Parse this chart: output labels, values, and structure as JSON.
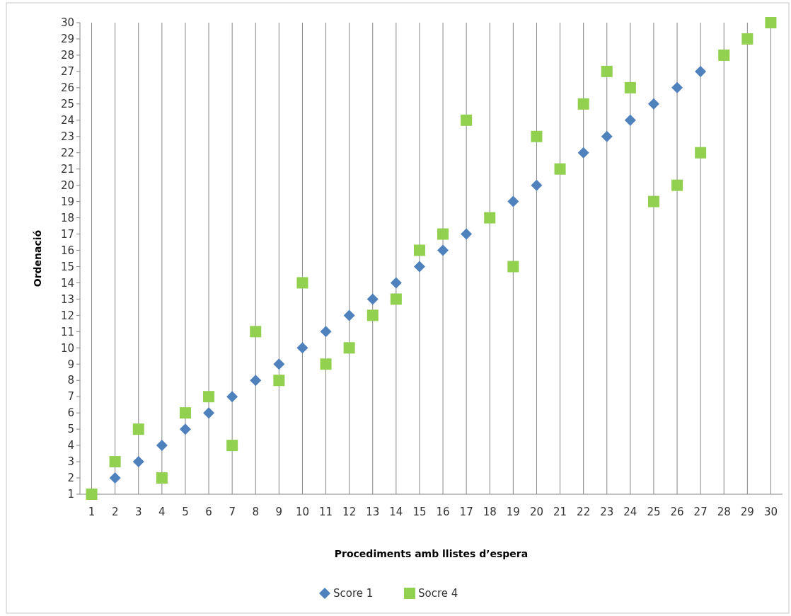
{
  "chart_data": {
    "type": "scatter",
    "xlabel": "Procediments amb llistes d’espera",
    "ylabel": "Ordenació",
    "categories": [
      "1",
      "2",
      "3",
      "4",
      "5",
      "6",
      "7",
      "8",
      "9",
      "10",
      "11",
      "12",
      "13",
      "14",
      "15",
      "16",
      "17",
      "18",
      "19",
      "20",
      "21",
      "22",
      "23",
      "24",
      "25",
      "26",
      "27",
      "28",
      "29",
      "30"
    ],
    "series": [
      {
        "name": "Score 1",
        "color": "#4f81bd",
        "marker": "diamond",
        "values": [
          null,
          2,
          3,
          4,
          5,
          6,
          7,
          8,
          9,
          10,
          11,
          12,
          13,
          14,
          15,
          16,
          17,
          null,
          19,
          20,
          null,
          22,
          23,
          24,
          25,
          26,
          27,
          null,
          null,
          null
        ]
      },
      {
        "name": "Socre 4",
        "color": "#92d050",
        "marker": "square",
        "values": [
          1,
          3,
          5,
          2,
          6,
          7,
          4,
          11,
          8,
          14,
          9,
          10,
          12,
          13,
          16,
          17,
          24,
          18,
          15,
          23,
          21,
          25,
          27,
          26,
          19,
          20,
          22,
          28,
          29,
          30
        ]
      }
    ],
    "ylim": [
      1,
      30
    ],
    "yticks": [
      1,
      2,
      3,
      4,
      5,
      6,
      7,
      8,
      9,
      10,
      11,
      12,
      13,
      14,
      15,
      16,
      17,
      18,
      19,
      20,
      21,
      22,
      23,
      24,
      25,
      26,
      27,
      28,
      29,
      30
    ],
    "grid": "x",
    "legend": "bottom"
  }
}
